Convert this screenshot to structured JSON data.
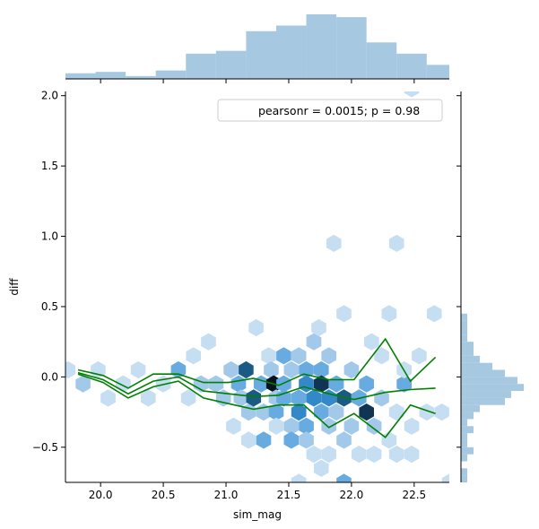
{
  "chart_data": {
    "type": "hexbin",
    "xlabel": "sim_mag",
    "ylabel": "diff",
    "xlim": [
      19.72,
      22.78
    ],
    "ylim": [
      -0.75,
      2.03
    ],
    "x_ticks": [
      "20.0",
      "20.5",
      "21.0",
      "21.5",
      "22.0",
      "22.5"
    ],
    "y_ticks": [
      "−0.5",
      "0.0",
      "0.5",
      "1.0",
      "1.5",
      "2.0"
    ],
    "annotation": "pearsonr = 0.0015; p = 0.98",
    "colors": {
      "hex_light": "#c6def2",
      "hex_mid1": "#a2c9ea",
      "hex_mid2": "#68abe0",
      "hex_mid3": "#3288c9",
      "hex_dark1": "#1b5a85",
      "hex_dark2": "#0f3553",
      "hex_black": "#061420",
      "line": "#008000",
      "hist": "#a6c8e0"
    },
    "hexbins": [
      {
        "x": 19.74,
        "y": 0.05,
        "level": 1
      },
      {
        "x": 19.86,
        "y": -0.05,
        "level": 2
      },
      {
        "x": 19.98,
        "y": 0.05,
        "level": 1
      },
      {
        "x": 20.06,
        "y": -0.15,
        "level": 1
      },
      {
        "x": 20.18,
        "y": -0.05,
        "level": 1
      },
      {
        "x": 20.3,
        "y": 0.05,
        "level": 1
      },
      {
        "x": 20.38,
        "y": -0.15,
        "level": 1
      },
      {
        "x": 20.5,
        "y": -0.05,
        "level": 1
      },
      {
        "x": 20.62,
        "y": 0.05,
        "level": 3
      },
      {
        "x": 20.7,
        "y": -0.15,
        "level": 1
      },
      {
        "x": 20.74,
        "y": 0.15,
        "level": 1
      },
      {
        "x": 20.8,
        "y": -0.05,
        "level": 2
      },
      {
        "x": 20.86,
        "y": 0.25,
        "level": 1
      },
      {
        "x": 20.92,
        "y": -0.05,
        "level": 2
      },
      {
        "x": 20.98,
        "y": -0.15,
        "level": 2
      },
      {
        "x": 21.04,
        "y": 0.05,
        "level": 2
      },
      {
        "x": 21.06,
        "y": -0.35,
        "level": 1
      },
      {
        "x": 21.1,
        "y": -0.05,
        "level": 3
      },
      {
        "x": 21.12,
        "y": -0.15,
        "level": 2
      },
      {
        "x": 21.16,
        "y": 0.05,
        "level": 5
      },
      {
        "x": 21.18,
        "y": -0.25,
        "level": 2
      },
      {
        "x": 21.18,
        "y": -0.45,
        "level": 1
      },
      {
        "x": 21.22,
        "y": -0.15,
        "level": 5
      },
      {
        "x": 21.24,
        "y": 0.35,
        "level": 1
      },
      {
        "x": 21.28,
        "y": -0.05,
        "level": 3
      },
      {
        "x": 21.3,
        "y": -0.25,
        "level": 2
      },
      {
        "x": 21.3,
        "y": -0.45,
        "level": 3
      },
      {
        "x": 21.34,
        "y": 0.15,
        "level": 1
      },
      {
        "x": 21.36,
        "y": 0.05,
        "level": 2
      },
      {
        "x": 21.38,
        "y": -0.05,
        "level": 7
      },
      {
        "x": 21.4,
        "y": -0.25,
        "level": 3
      },
      {
        "x": 21.4,
        "y": -0.15,
        "level": 2
      },
      {
        "x": 21.4,
        "y": -0.35,
        "level": 1
      },
      {
        "x": 21.46,
        "y": 0.15,
        "level": 3
      },
      {
        "x": 21.46,
        "y": -0.05,
        "level": 3
      },
      {
        "x": 21.46,
        "y": -0.15,
        "level": 3
      },
      {
        "x": 21.52,
        "y": -0.35,
        "level": 2
      },
      {
        "x": 21.52,
        "y": -0.45,
        "level": 3
      },
      {
        "x": 21.52,
        "y": 0.05,
        "level": 2
      },
      {
        "x": 21.58,
        "y": 0.15,
        "level": 2
      },
      {
        "x": 21.58,
        "y": -0.15,
        "level": 3
      },
      {
        "x": 21.58,
        "y": -0.25,
        "level": 4
      },
      {
        "x": 21.58,
        "y": -0.75,
        "level": 1
      },
      {
        "x": 21.64,
        "y": 0.05,
        "level": 3
      },
      {
        "x": 21.64,
        "y": -0.05,
        "level": 4
      },
      {
        "x": 21.64,
        "y": -0.35,
        "level": 3
      },
      {
        "x": 21.64,
        "y": -0.45,
        "level": 2
      },
      {
        "x": 21.7,
        "y": 0.25,
        "level": 2
      },
      {
        "x": 21.7,
        "y": -0.15,
        "level": 4
      },
      {
        "x": 21.7,
        "y": -0.55,
        "level": 1
      },
      {
        "x": 21.74,
        "y": 0.35,
        "level": 1
      },
      {
        "x": 21.76,
        "y": 0.05,
        "level": 3
      },
      {
        "x": 21.76,
        "y": -0.05,
        "level": 6
      },
      {
        "x": 21.76,
        "y": -0.25,
        "level": 3
      },
      {
        "x": 21.76,
        "y": -0.65,
        "level": 1
      },
      {
        "x": 21.82,
        "y": 0.15,
        "level": 2
      },
      {
        "x": 21.82,
        "y": -0.15,
        "level": 4
      },
      {
        "x": 21.82,
        "y": -0.35,
        "level": 2
      },
      {
        "x": 21.82,
        "y": -0.55,
        "level": 1
      },
      {
        "x": 21.86,
        "y": 0.95,
        "level": 1
      },
      {
        "x": 21.88,
        "y": -0.05,
        "level": 3
      },
      {
        "x": 21.88,
        "y": -0.25,
        "level": 2
      },
      {
        "x": 21.94,
        "y": -0.15,
        "level": 5
      },
      {
        "x": 21.94,
        "y": -0.45,
        "level": 2
      },
      {
        "x": 21.94,
        "y": 0.45,
        "level": 1
      },
      {
        "x": 21.94,
        "y": -0.75,
        "level": 3
      },
      {
        "x": 22.0,
        "y": -0.35,
        "level": 2
      },
      {
        "x": 22.0,
        "y": 0.05,
        "level": 2
      },
      {
        "x": 22.06,
        "y": -0.15,
        "level": 3
      },
      {
        "x": 22.06,
        "y": -0.55,
        "level": 1
      },
      {
        "x": 22.12,
        "y": -0.25,
        "level": 6
      },
      {
        "x": 22.12,
        "y": -0.05,
        "level": 3
      },
      {
        "x": 22.16,
        "y": 0.25,
        "level": 1
      },
      {
        "x": 22.18,
        "y": -0.35,
        "level": 2
      },
      {
        "x": 22.18,
        "y": -0.55,
        "level": 1
      },
      {
        "x": 22.24,
        "y": -0.15,
        "level": 2
      },
      {
        "x": 22.24,
        "y": 0.15,
        "level": 1
      },
      {
        "x": 22.3,
        "y": -0.45,
        "level": 1
      },
      {
        "x": 22.3,
        "y": 0.45,
        "level": 1
      },
      {
        "x": 22.36,
        "y": 0.95,
        "level": 1
      },
      {
        "x": 22.36,
        "y": -0.25,
        "level": 1
      },
      {
        "x": 22.36,
        "y": -0.55,
        "level": 1
      },
      {
        "x": 22.42,
        "y": -0.05,
        "level": 3
      },
      {
        "x": 22.42,
        "y": 0.05,
        "level": 1
      },
      {
        "x": 22.48,
        "y": -0.35,
        "level": 1
      },
      {
        "x": 22.48,
        "y": -0.55,
        "level": 1
      },
      {
        "x": 22.48,
        "y": 2.05,
        "level": 1
      },
      {
        "x": 22.54,
        "y": 0.15,
        "level": 1
      },
      {
        "x": 22.6,
        "y": -0.25,
        "level": 1
      },
      {
        "x": 22.66,
        "y": 0.45,
        "level": 1
      },
      {
        "x": 22.72,
        "y": -0.25,
        "level": 1
      },
      {
        "x": 22.78,
        "y": -0.75,
        "level": 1
      }
    ],
    "lines": [
      {
        "x": [
          19.82,
          20.02,
          20.22,
          20.42,
          20.62,
          20.82,
          21.02,
          21.22,
          21.42,
          21.62,
          21.82,
          22.02,
          22.27,
          22.47,
          22.67
        ],
        "y": [
          0.05,
          0.01,
          -0.08,
          0.02,
          0.02,
          -0.04,
          -0.04,
          -0.01,
          -0.06,
          0.02,
          -0.02,
          -0.02,
          0.27,
          -0.03,
          0.14
        ]
      },
      {
        "x": [
          19.82,
          20.02,
          20.22,
          20.42,
          20.62,
          20.82,
          21.02,
          21.22,
          21.42,
          21.62,
          21.82,
          22.02,
          22.27,
          22.47,
          22.67
        ],
        "y": [
          0.03,
          -0.02,
          -0.12,
          -0.03,
          0.0,
          -0.1,
          -0.12,
          -0.14,
          -0.13,
          -0.07,
          -0.12,
          -0.16,
          -0.11,
          -0.09,
          -0.08
        ]
      },
      {
        "x": [
          19.82,
          20.02,
          20.22,
          20.42,
          20.62,
          20.82,
          21.02,
          21.22,
          21.42,
          21.62,
          21.82,
          22.02,
          22.27,
          22.47,
          22.67
        ],
        "y": [
          0.02,
          -0.04,
          -0.15,
          -0.07,
          -0.03,
          -0.15,
          -0.19,
          -0.23,
          -0.2,
          -0.2,
          -0.36,
          -0.26,
          -0.43,
          -0.2,
          -0.26
        ]
      }
    ],
    "top_hist": {
      "bin_edges": [
        19.72,
        19.96,
        20.2,
        20.44,
        20.68,
        20.92,
        21.16,
        21.4,
        21.64,
        21.88,
        22.12,
        22.36,
        22.6,
        22.78
      ],
      "counts": [
        2,
        2.5,
        1,
        3,
        9,
        10,
        17,
        19,
        23,
        22,
        13,
        9,
        5
      ]
    },
    "right_hist": {
      "bin_edges": [
        -0.75,
        -0.7,
        -0.65,
        -0.6,
        -0.55,
        -0.5,
        -0.45,
        -0.4,
        -0.35,
        -0.3,
        -0.25,
        -0.2,
        -0.15,
        -0.1,
        -0.05,
        0.0,
        0.05,
        0.1,
        0.15,
        0.2,
        0.25,
        0.3,
        0.35,
        0.4,
        0.45
      ],
      "counts": [
        1,
        1,
        0,
        1,
        2,
        1,
        1,
        2,
        1,
        2,
        3,
        7,
        8,
        10,
        9,
        7,
        5,
        3,
        2,
        2,
        1,
        1,
        1,
        1
      ]
    }
  }
}
